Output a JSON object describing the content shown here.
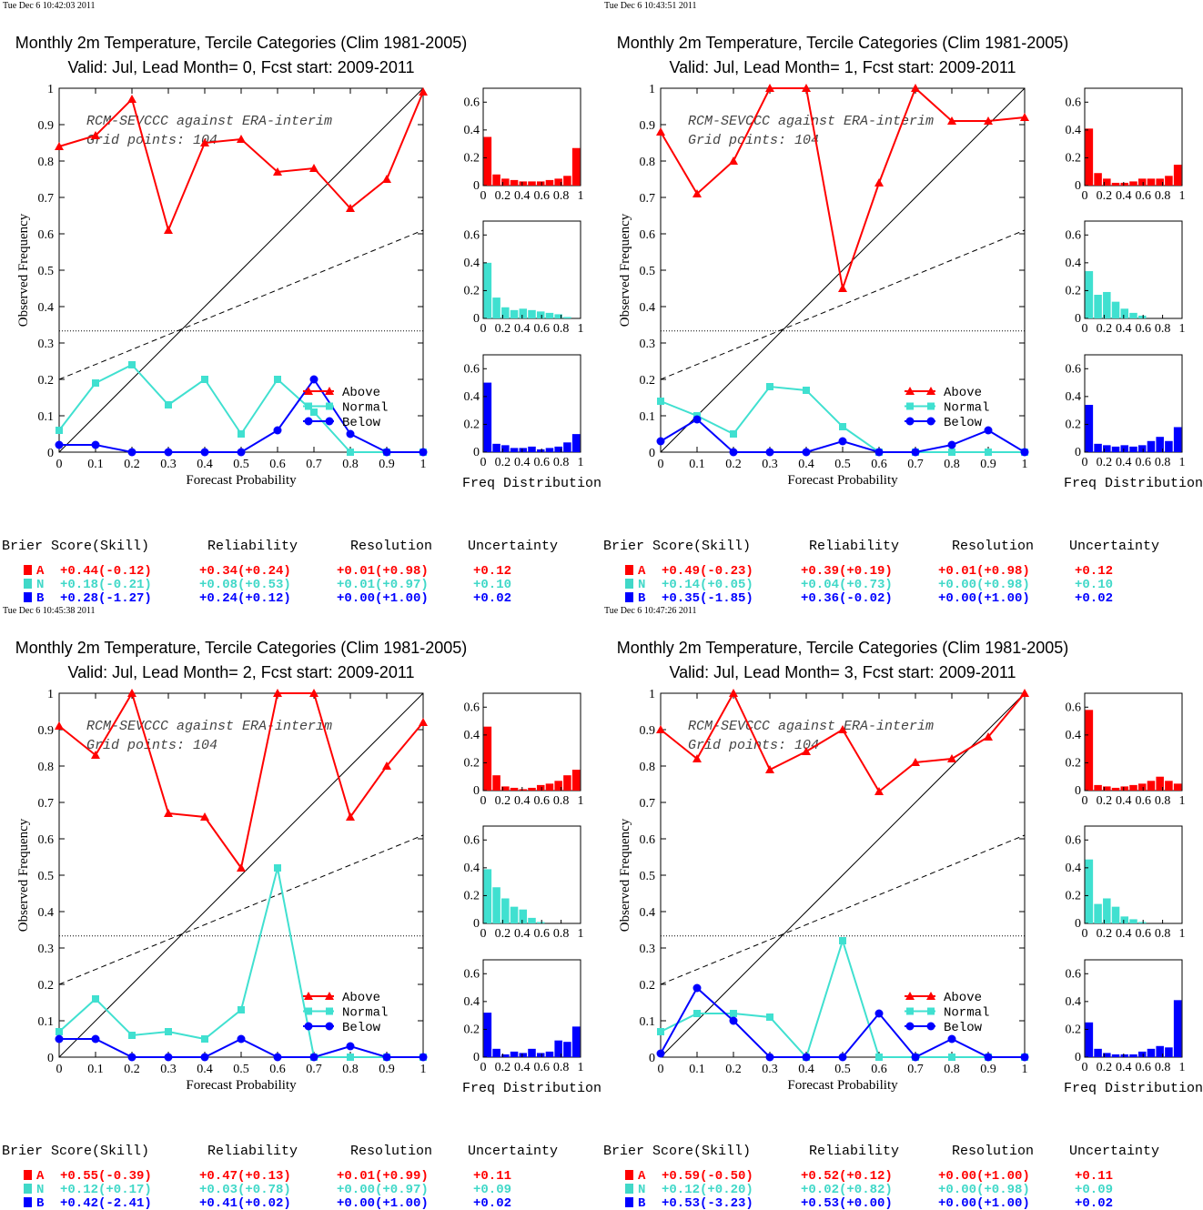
{
  "colors": {
    "above": "#ff0000",
    "normal": "#40e0d0",
    "below": "#0000ff",
    "score_normal": "#40d8c8"
  },
  "chart_data": [
    {
      "type": "line",
      "timestamp": "Tue Dec  6 10:42:03 2011",
      "title": "Monthly 2m Temperature, Tercile Categories (Clim 1981-2005)",
      "subtitle": "Valid: Jul, Lead Month= 0, Fcst start: 2009-2011",
      "xlabel": "Forecast Probability",
      "ylabel": "Observed Frequency",
      "annotation": [
        "RCM-SEVCCC against ERA-interim",
        "Grid points:  104"
      ],
      "xlim": [
        0,
        1
      ],
      "ylim": [
        0,
        1
      ],
      "x": [
        0,
        0.1,
        0.2,
        0.3,
        0.4,
        0.5,
        0.6,
        0.7,
        0.8,
        0.9,
        1
      ],
      "x_ticks": [
        "0",
        "0.1",
        "0.2",
        "0.3",
        "0.4",
        "0.5",
        "0.6",
        "0.7",
        "0.8",
        "0.9",
        "1"
      ],
      "y_ticks": [
        "0",
        "0.1",
        "0.2",
        "0.3",
        "0.4",
        "0.5",
        "0.6",
        "0.7",
        "0.8",
        "0.9",
        "1"
      ],
      "reference": {
        "perfect_reliability": [
          [
            0,
            0
          ],
          [
            1,
            1
          ]
        ],
        "no_skill": [
          [
            0,
            0.2
          ],
          [
            1,
            0.61
          ]
        ],
        "climatology": 0.333
      },
      "series": [
        {
          "name": "Above",
          "values": [
            0.84,
            0.87,
            0.97,
            0.61,
            0.85,
            0.86,
            0.77,
            0.78,
            0.67,
            0.75,
            0.99
          ]
        },
        {
          "name": "Normal",
          "values": [
            0.06,
            0.19,
            0.24,
            0.13,
            0.2,
            0.05,
            0.2,
            0.11,
            0,
            0,
            0
          ]
        },
        {
          "name": "Below",
          "values": [
            0.02,
            0.02,
            0,
            0,
            0,
            0,
            0.06,
            0.2,
            0.05,
            0,
            0
          ]
        }
      ],
      "histograms": {
        "xlabel": "Freq Distribution",
        "x_ticks": [
          "0",
          "0.2",
          "0.4",
          "0.6",
          "0.8",
          "1"
        ],
        "y_ticks": [
          "0",
          "0.2",
          "0.4",
          "0.6"
        ],
        "ylim": [
          0,
          0.7
        ],
        "series": [
          {
            "category": "Above",
            "values": [
              0.35,
              0.08,
              0.05,
              0.04,
              0.03,
              0.03,
              0.03,
              0.04,
              0.05,
              0.07,
              0.27
            ]
          },
          {
            "category": "Normal",
            "values": [
              0.4,
              0.15,
              0.08,
              0.06,
              0.07,
              0.06,
              0.05,
              0.04,
              0.03,
              0.01,
              0
            ]
          },
          {
            "category": "Below",
            "values": [
              0.5,
              0.06,
              0.05,
              0.03,
              0.03,
              0.04,
              0.02,
              0.03,
              0.04,
              0.07,
              0.13
            ]
          }
        ]
      },
      "scores": {
        "headers": [
          "Brier Score(Skill)",
          "Reliability",
          "Resolution",
          "Uncertainty"
        ],
        "rows": [
          {
            "label": "A",
            "brier": "+0.44(-0.12)",
            "reliability": "+0.34(+0.24)",
            "resolution": "+0.01(+0.98)",
            "uncertainty": "+0.12"
          },
          {
            "label": "N",
            "brier": "+0.18(-0.21)",
            "reliability": "+0.08(+0.53)",
            "resolution": "+0.01(+0.97)",
            "uncertainty": "+0.10"
          },
          {
            "label": "B",
            "brier": "+0.28(-1.27)",
            "reliability": "+0.24(+0.12)",
            "resolution": "+0.00(+1.00)",
            "uncertainty": "+0.02"
          }
        ]
      }
    },
    {
      "type": "line",
      "timestamp": "Tue Dec  6 10:43:51 2011",
      "title": "Monthly 2m Temperature, Tercile Categories (Clim 1981-2005)",
      "subtitle": "Valid: Jul, Lead Month= 1, Fcst start: 2009-2011",
      "xlabel": "Forecast Probability",
      "ylabel": "Observed Frequency",
      "annotation": [
        "RCM-SEVCCC against ERA-interim",
        "Grid points:  104"
      ],
      "xlim": [
        0,
        1
      ],
      "ylim": [
        0,
        1
      ],
      "x": [
        0,
        0.1,
        0.2,
        0.3,
        0.4,
        0.5,
        0.6,
        0.7,
        0.8,
        0.9,
        1
      ],
      "x_ticks": [
        "0",
        "0.1",
        "0.2",
        "0.3",
        "0.4",
        "0.5",
        "0.6",
        "0.7",
        "0.8",
        "0.9",
        "1"
      ],
      "y_ticks": [
        "0",
        "0.1",
        "0.2",
        "0.3",
        "0.4",
        "0.5",
        "0.6",
        "0.7",
        "0.8",
        "0.9",
        "1"
      ],
      "reference": {
        "perfect_reliability": [
          [
            0,
            0
          ],
          [
            1,
            1
          ]
        ],
        "no_skill": [
          [
            0,
            0.2
          ],
          [
            1,
            0.61
          ]
        ],
        "climatology": 0.333
      },
      "series": [
        {
          "name": "Above",
          "values": [
            0.88,
            0.71,
            0.8,
            1.0,
            1.0,
            0.45,
            0.74,
            1.0,
            0.91,
            0.91,
            0.92
          ]
        },
        {
          "name": "Normal",
          "values": [
            0.14,
            0.1,
            0.05,
            0.18,
            0.17,
            0.07,
            0,
            0,
            0,
            0,
            0
          ]
        },
        {
          "name": "Below",
          "values": [
            0.03,
            0.09,
            0,
            0,
            0,
            0.03,
            0,
            0,
            0.02,
            0.06,
            0
          ]
        }
      ],
      "histograms": {
        "xlabel": "Freq Distribution",
        "x_ticks": [
          "0",
          "0.2",
          "0.4",
          "0.6",
          "0.8",
          "1"
        ],
        "y_ticks": [
          "0",
          "0.2",
          "0.4",
          "0.6"
        ],
        "ylim": [
          0,
          0.7
        ],
        "series": [
          {
            "category": "Above",
            "values": [
              0.41,
              0.09,
              0.05,
              0.02,
              0.02,
              0.03,
              0.05,
              0.05,
              0.05,
              0.07,
              0.15
            ]
          },
          {
            "category": "Normal",
            "values": [
              0.34,
              0.17,
              0.19,
              0.12,
              0.07,
              0.04,
              0.02,
              0,
              0,
              0,
              0
            ]
          },
          {
            "category": "Below",
            "values": [
              0.34,
              0.06,
              0.05,
              0.04,
              0.05,
              0.04,
              0.05,
              0.08,
              0.11,
              0.08,
              0.18
            ]
          }
        ]
      },
      "scores": {
        "headers": [
          "Brier Score(Skill)",
          "Reliability",
          "Resolution",
          "Uncertainty"
        ],
        "rows": [
          {
            "label": "A",
            "brier": "+0.49(-0.23)",
            "reliability": "+0.39(+0.19)",
            "resolution": "+0.01(+0.98)",
            "uncertainty": "+0.12"
          },
          {
            "label": "N",
            "brier": "+0.14(+0.05)",
            "reliability": "+0.04(+0.73)",
            "resolution": "+0.00(+0.98)",
            "uncertainty": "+0.10"
          },
          {
            "label": "B",
            "brier": "+0.35(-1.85)",
            "reliability": "+0.36(-0.02)",
            "resolution": "+0.00(+1.00)",
            "uncertainty": "+0.02"
          }
        ]
      }
    },
    {
      "type": "line",
      "timestamp": "Tue Dec  6 10:45:38 2011",
      "title": "Monthly 2m Temperature, Tercile Categories (Clim 1981-2005)",
      "subtitle": "Valid: Jul, Lead Month= 2, Fcst start: 2009-2011",
      "xlabel": "Forecast Probability",
      "ylabel": "Observed Frequency",
      "annotation": [
        "RCM-SEVCCC against ERA-interim",
        "Grid points:  104"
      ],
      "xlim": [
        0,
        1
      ],
      "ylim": [
        0,
        1
      ],
      "x": [
        0,
        0.1,
        0.2,
        0.3,
        0.4,
        0.5,
        0.6,
        0.7,
        0.8,
        0.9,
        1
      ],
      "x_ticks": [
        "0",
        "0.1",
        "0.2",
        "0.3",
        "0.4",
        "0.5",
        "0.6",
        "0.7",
        "0.8",
        "0.9",
        "1"
      ],
      "y_ticks": [
        "0",
        "0.1",
        "0.2",
        "0.3",
        "0.4",
        "0.5",
        "0.6",
        "0.7",
        "0.8",
        "0.9",
        "1"
      ],
      "reference": {
        "perfect_reliability": [
          [
            0,
            0
          ],
          [
            1,
            1
          ]
        ],
        "no_skill": [
          [
            0,
            0.2
          ],
          [
            1,
            0.61
          ]
        ],
        "climatology": 0.333
      },
      "series": [
        {
          "name": "Above",
          "values": [
            0.91,
            0.83,
            1.0,
            0.67,
            0.66,
            0.52,
            1.0,
            1.0,
            0.66,
            0.8,
            0.92
          ]
        },
        {
          "name": "Normal",
          "values": [
            0.07,
            0.16,
            0.06,
            0.07,
            0.05,
            0.13,
            0.52,
            0,
            0,
            0,
            0
          ]
        },
        {
          "name": "Below",
          "values": [
            0.05,
            0.05,
            0,
            0,
            0,
            0.05,
            0,
            0,
            0.03,
            0,
            0
          ]
        }
      ],
      "histograms": {
        "xlabel": "Freq Distribution",
        "x_ticks": [
          "0",
          "0.2",
          "0.4",
          "0.6",
          "0.8",
          "1"
        ],
        "y_ticks": [
          "0",
          "0.2",
          "0.4",
          "0.6"
        ],
        "ylim": [
          0,
          0.7
        ],
        "series": [
          {
            "category": "Above",
            "values": [
              0.46,
              0.11,
              0.03,
              0.02,
              0.01,
              0.02,
              0.04,
              0.05,
              0.07,
              0.11,
              0.15
            ]
          },
          {
            "category": "Normal",
            "values": [
              0.39,
              0.26,
              0.18,
              0.12,
              0.1,
              0.04,
              0.01,
              0,
              0,
              0,
              0
            ]
          },
          {
            "category": "Below",
            "values": [
              0.32,
              0.06,
              0.02,
              0.04,
              0.03,
              0.06,
              0.03,
              0.04,
              0.12,
              0.11,
              0.22
            ]
          }
        ]
      },
      "scores": {
        "headers": [
          "Brier Score(Skill)",
          "Reliability",
          "Resolution",
          "Uncertainty"
        ],
        "rows": [
          {
            "label": "A",
            "brier": "+0.55(-0.39)",
            "reliability": "+0.47(+0.13)",
            "resolution": "+0.01(+0.99)",
            "uncertainty": "+0.11"
          },
          {
            "label": "N",
            "brier": "+0.12(+0.17)",
            "reliability": "+0.03(+0.78)",
            "resolution": "+0.00(+0.97)",
            "uncertainty": "+0.09"
          },
          {
            "label": "B",
            "brier": "+0.42(-2.41)",
            "reliability": "+0.41(+0.02)",
            "resolution": "+0.00(+1.00)",
            "uncertainty": "+0.02"
          }
        ]
      }
    },
    {
      "type": "line",
      "timestamp": "Tue Dec  6 10:47:26 2011",
      "title": "Monthly 2m Temperature, Tercile Categories (Clim 1981-2005)",
      "subtitle": "Valid: Jul, Lead Month= 3, Fcst start: 2009-2011",
      "xlabel": "Forecast Probability",
      "ylabel": "Observed Frequency",
      "annotation": [
        "RCM-SEVCCC against ERA-interim",
        "Grid points:  104"
      ],
      "xlim": [
        0,
        1
      ],
      "ylim": [
        0,
        1
      ],
      "x": [
        0,
        0.1,
        0.2,
        0.3,
        0.4,
        0.5,
        0.6,
        0.7,
        0.8,
        0.9,
        1
      ],
      "x_ticks": [
        "0",
        "0.1",
        "0.2",
        "0.3",
        "0.4",
        "0.5",
        "0.6",
        "0.7",
        "0.8",
        "0.9",
        "1"
      ],
      "y_ticks": [
        "0",
        "0.1",
        "0.2",
        "0.3",
        "0.4",
        "0.5",
        "0.6",
        "0.7",
        "0.8",
        "0.9",
        "1"
      ],
      "reference": {
        "perfect_reliability": [
          [
            0,
            0
          ],
          [
            1,
            1
          ]
        ],
        "no_skill": [
          [
            0,
            0.2
          ],
          [
            1,
            0.61
          ]
        ],
        "climatology": 0.333
      },
      "series": [
        {
          "name": "Above",
          "values": [
            0.9,
            0.82,
            1.0,
            0.79,
            0.84,
            0.9,
            0.73,
            0.81,
            0.82,
            0.88,
            1.0
          ]
        },
        {
          "name": "Normal",
          "values": [
            0.07,
            0.12,
            0.12,
            0.11,
            0,
            0.32,
            0,
            0,
            0,
            0,
            0
          ]
        },
        {
          "name": "Below",
          "values": [
            0.01,
            0.19,
            0.1,
            0,
            0,
            0,
            0.12,
            0,
            0.05,
            0,
            0
          ]
        }
      ],
      "histograms": {
        "xlabel": "Freq Distribution",
        "x_ticks": [
          "0",
          "0.2",
          "0.4",
          "0.6",
          "0.8",
          "1"
        ],
        "y_ticks": [
          "0",
          "0.2",
          "0.4",
          "0.6"
        ],
        "ylim": [
          0,
          0.7
        ],
        "series": [
          {
            "category": "Above",
            "values": [
              0.58,
              0.04,
              0.03,
              0.02,
              0.03,
              0.04,
              0.05,
              0.07,
              0.1,
              0.07,
              0.05
            ]
          },
          {
            "category": "Normal",
            "values": [
              0.46,
              0.14,
              0.18,
              0.12,
              0.05,
              0.03,
              0.01,
              0,
              0,
              0,
              0
            ]
          },
          {
            "category": "Below",
            "values": [
              0.25,
              0.06,
              0.03,
              0.02,
              0.02,
              0.02,
              0.04,
              0.06,
              0.08,
              0.07,
              0.41
            ]
          }
        ]
      },
      "scores": {
        "headers": [
          "Brier Score(Skill)",
          "Reliability",
          "Resolution",
          "Uncertainty"
        ],
        "rows": [
          {
            "label": "A",
            "brier": "+0.59(-0.50)",
            "reliability": "+0.52(+0.12)",
            "resolution": "+0.00(+1.00)",
            "uncertainty": "+0.11"
          },
          {
            "label": "N",
            "brier": "+0.12(+0.20)",
            "reliability": "+0.02(+0.82)",
            "resolution": "+0.00(+0.98)",
            "uncertainty": "+0.09"
          },
          {
            "label": "B",
            "brier": "+0.53(-3.23)",
            "reliability": "+0.53(+0.00)",
            "resolution": "+0.00(+1.00)",
            "uncertainty": "+0.02"
          }
        ]
      }
    }
  ]
}
